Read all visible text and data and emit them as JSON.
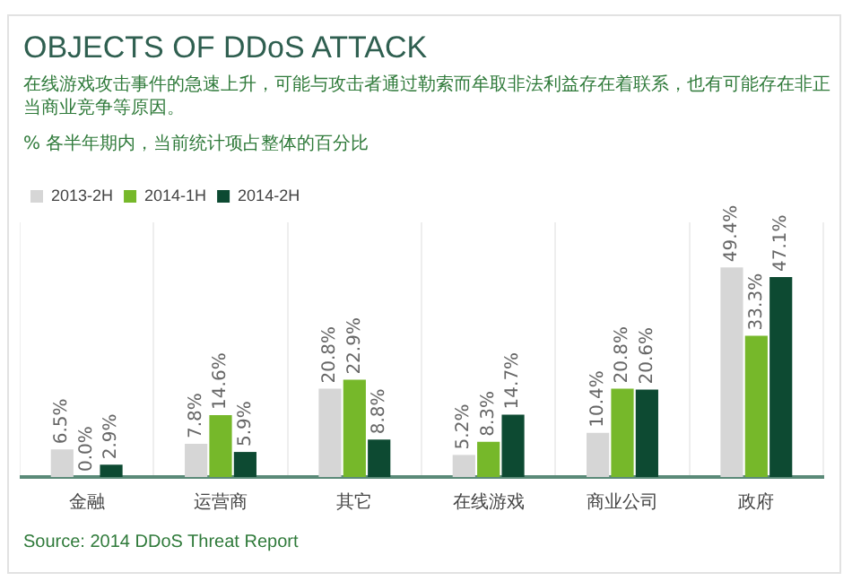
{
  "chart_data": {
    "type": "bar",
    "title": "OBJECTS OF DDoS ATTACK",
    "subtitle": "在线游戏攻击事件的急速上升，可能与攻击者通过勒索而牟取非法利益存在着联系，也有可能存在非正当商业竞争等原因。",
    "annotations": [
      "% 各半年期内，当前统计项占整体的百分比",
      "Source: 2014 DDoS Threat Report"
    ],
    "categories": [
      "金融",
      "运营商",
      "其它",
      "在线游戏",
      "商业公司",
      "政府"
    ],
    "series": [
      {
        "name": "2013-2H",
        "color": "#d6d6d6",
        "values": [
          6.5,
          7.8,
          20.8,
          5.2,
          10.4,
          49.4
        ],
        "value_labels": [
          "6.5%",
          "7.8%",
          "20.8%",
          "5.2%",
          "10.4%",
          "49.4%"
        ]
      },
      {
        "name": "2014-1H",
        "color": "#76b82a",
        "values": [
          0.0,
          14.6,
          22.9,
          8.3,
          20.8,
          33.3
        ],
        "value_labels": [
          "0.0%",
          "14.6%",
          "22.9%",
          "8.3%",
          "20.8%",
          "33.3%"
        ]
      },
      {
        "name": "2014-2H",
        "color": "#0d4a32",
        "values": [
          2.9,
          5.9,
          8.8,
          14.7,
          20.6,
          47.1
        ],
        "value_labels": [
          "2.9%",
          "5.9%",
          "8.8%",
          "14.7%",
          "20.6%",
          "47.1%"
        ]
      }
    ],
    "legend": "top left",
    "grid": "x"
  }
}
